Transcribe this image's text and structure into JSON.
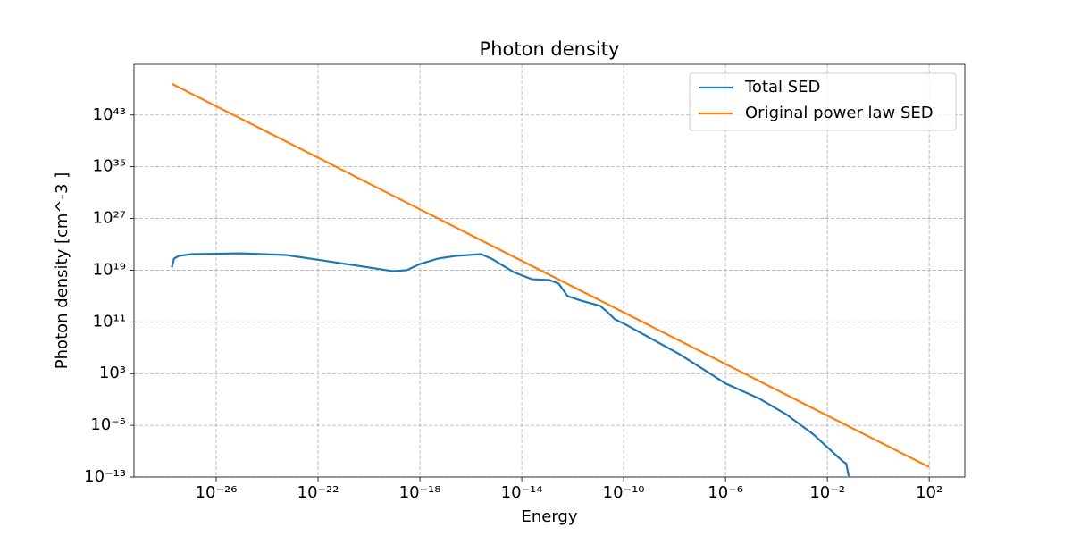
{
  "chart_data": {
    "type": "line",
    "title": "Photon density",
    "x_label": "Energy",
    "y_label": "Photon density [cm^-3 ]",
    "log_x": true,
    "log_y": true,
    "grid": true,
    "legend_position": "upper right",
    "xlim": [
      5.9e-30,
      2500.0
    ],
    "ylim": [
      1e-13,
      7e+50
    ],
    "xticks": [
      {
        "value": 1e-26,
        "label": "10⁻²⁶"
      },
      {
        "value": 1e-22,
        "label": "10⁻²²"
      },
      {
        "value": 1e-18,
        "label": "10⁻¹⁸"
      },
      {
        "value": 1e-14,
        "label": "10⁻¹⁴"
      },
      {
        "value": 1e-10,
        "label": "10⁻¹⁰"
      },
      {
        "value": 1e-06,
        "label": "10⁻⁶"
      },
      {
        "value": 0.01,
        "label": "10⁻²"
      },
      {
        "value": 100.0,
        "label": "10²"
      }
    ],
    "yticks": [
      {
        "value": 1e-13,
        "label": "10⁻¹³"
      },
      {
        "value": 1e-05,
        "label": "10⁻⁵"
      },
      {
        "value": 1000.0,
        "label": "10³"
      },
      {
        "value": 100000000000.0,
        "label": "10¹¹"
      },
      {
        "value": 1e+19,
        "label": "10¹⁹"
      },
      {
        "value": 1e+27,
        "label": "10²⁷"
      },
      {
        "value": 1e+35,
        "label": "10³⁵"
      },
      {
        "value": 1e+43,
        "label": "10⁴³"
      }
    ],
    "series": [
      {
        "name": "Total SED",
        "color": "#1f77b4",
        "x": [
          1.8e-28,
          2.2e-28,
          3.4e-28,
          1.1e-27,
          9.5e-26,
          5.5e-24,
          1.4e-22,
          3.5e-21,
          8.9e-20,
          3e-19,
          1e-18,
          5e-18,
          2.5e-17,
          2.5e-16,
          6.5e-16,
          4.8e-15,
          2.5e-14,
          1.2e-13,
          2.8e-13,
          6.2e-13,
          2.1e-12,
          1.2e-11,
          2.3e-11,
          4.5e-11,
          1.2e-10,
          1.5e-08,
          1.7e-07,
          1e-06,
          2.1e-05,
          0.00025,
          0.0028,
          0.021,
          0.043,
          0.055,
          0.069
        ],
        "values": [
          2.6e+19,
          6e+20,
          1.6e+21,
          3e+21,
          4e+21,
          2.2e+21,
          3.3e+20,
          4.9e+19,
          7e+18,
          1e+19,
          9e+19,
          6e+20,
          1.6e+21,
          3e+21,
          6e+20,
          5e+18,
          4e+17,
          3e+17,
          8.5e+16,
          1000000000000000.0,
          200000000000000.0,
          30000000000000.0,
          3300000000000.0,
          260000000000.0,
          39000000000.0,
          1100000.0,
          2600.0,
          30,
          0.14,
          0.00046,
          4.2e-07,
          2.8e-10,
          2.2e-11,
          1.2e-11,
          1.4e-13
        ]
      },
      {
        "name": "Original power law SED",
        "color": "#ff7f0e",
        "x": [
          1.8e-28,
          1e-26,
          1e-22,
          1e-18,
          1e-14,
          1e-10,
          1e-06,
          0.01,
          100.0
        ],
        "values": [
          7e+47,
          2.3e+44,
          2.5e+36,
          2.6e+28,
          2.8e+20,
          3000000000000.0,
          31000.0,
          0.00032,
          3.5e-12
        ]
      }
    ]
  }
}
